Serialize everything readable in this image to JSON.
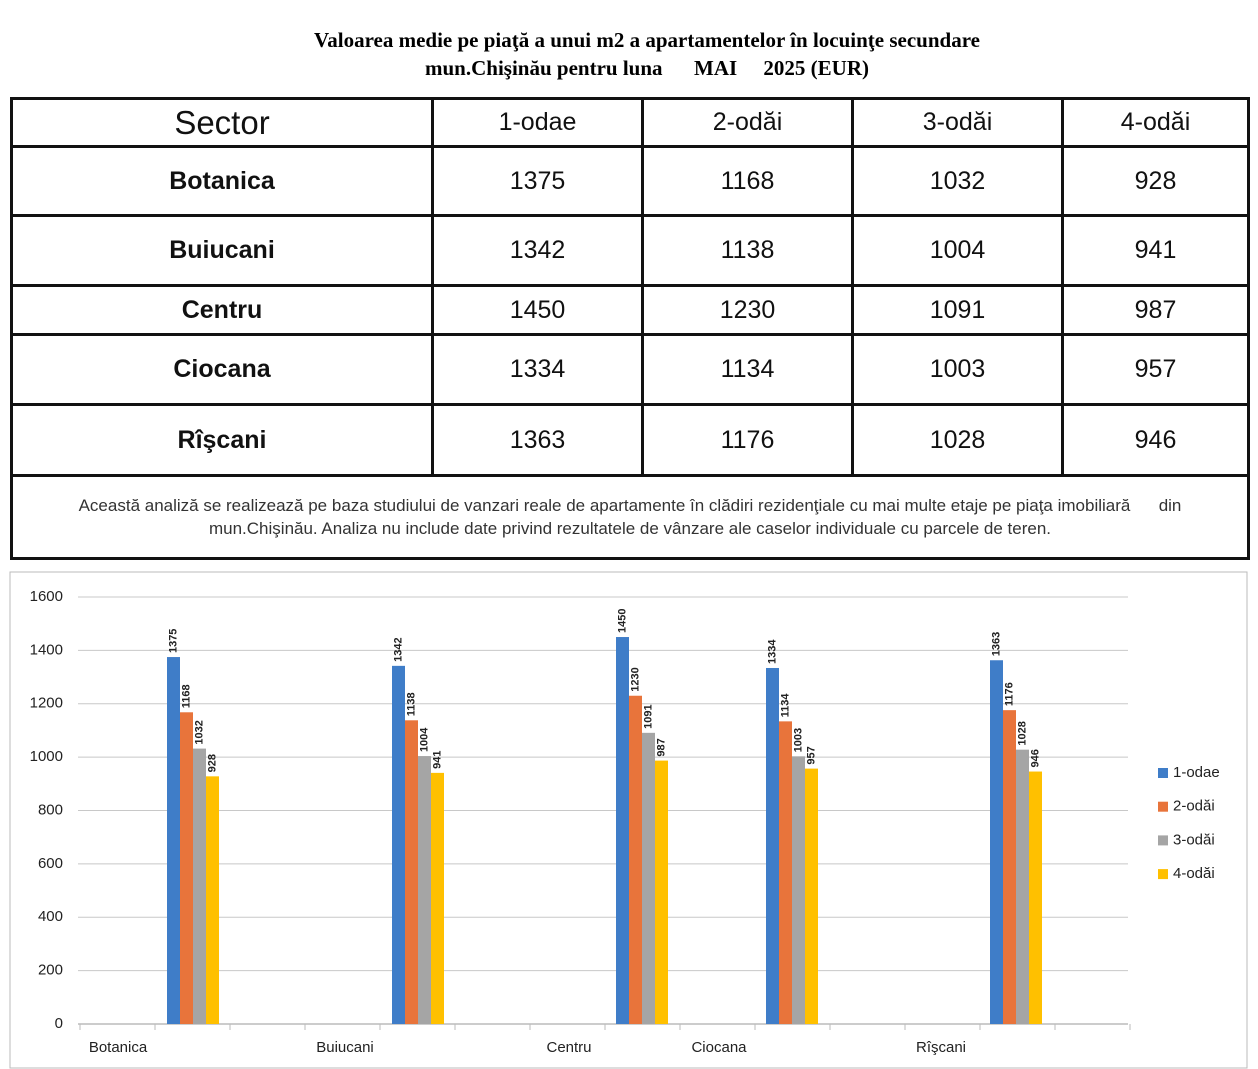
{
  "header": {
    "title_line1": "Valoarea medie pe piaţă a unui m2 a apartamentelor în locuinţe secundare",
    "title_line2": "mun.Chişinău pentru luna      MAI     2025 (EUR)"
  },
  "table": {
    "columns": [
      "Sector",
      "1-odae",
      "2-odăi",
      "3-odăi",
      "4-odăi"
    ],
    "rows": [
      [
        "Botanica",
        "1375",
        "1168",
        "1032",
        "928"
      ],
      [
        "Buiucani",
        "1342",
        "1138",
        "1004",
        "941"
      ],
      [
        "Centru",
        "1450",
        "1230",
        "1091",
        "987"
      ],
      [
        "Ciocana",
        "1334",
        "1134",
        "1003",
        "957"
      ],
      [
        "Rîşcani",
        "1363",
        "1176",
        "1028",
        "946"
      ]
    ],
    "note": "Această analiză se realizează pe baza studiului de vanzari reale de apartamente în clădiri rezidenţiale cu mai multe etaje pe piaţa imobiliară      din mun.Chişinău. Analiza nu include date privind rezultatele de vânzare ale caselor individuale cu parcele de teren."
  },
  "chart_data": {
    "type": "bar",
    "categories": [
      "Botanica",
      "Buiucani",
      "Centru",
      "Ciocana",
      "Rîşcani"
    ],
    "series": [
      {
        "name": "1-odae",
        "color": "#3f7dc8",
        "values": [
          1375,
          1342,
          1450,
          1334,
          1363
        ]
      },
      {
        "name": "2-odăi",
        "color": "#e8743b",
        "values": [
          1168,
          1138,
          1230,
          1134,
          1176
        ]
      },
      {
        "name": "3-odăi",
        "color": "#a5a5a5",
        "values": [
          1032,
          1004,
          1091,
          1003,
          1028
        ]
      },
      {
        "name": "4-odăi",
        "color": "#ffc000",
        "values": [
          928,
          941,
          987,
          957,
          946
        ]
      }
    ],
    "ylim": [
      0,
      1600
    ],
    "yticks": [
      0,
      200,
      400,
      600,
      800,
      1000,
      1200,
      1400,
      1600
    ],
    "grid": true,
    "legend": "right"
  }
}
